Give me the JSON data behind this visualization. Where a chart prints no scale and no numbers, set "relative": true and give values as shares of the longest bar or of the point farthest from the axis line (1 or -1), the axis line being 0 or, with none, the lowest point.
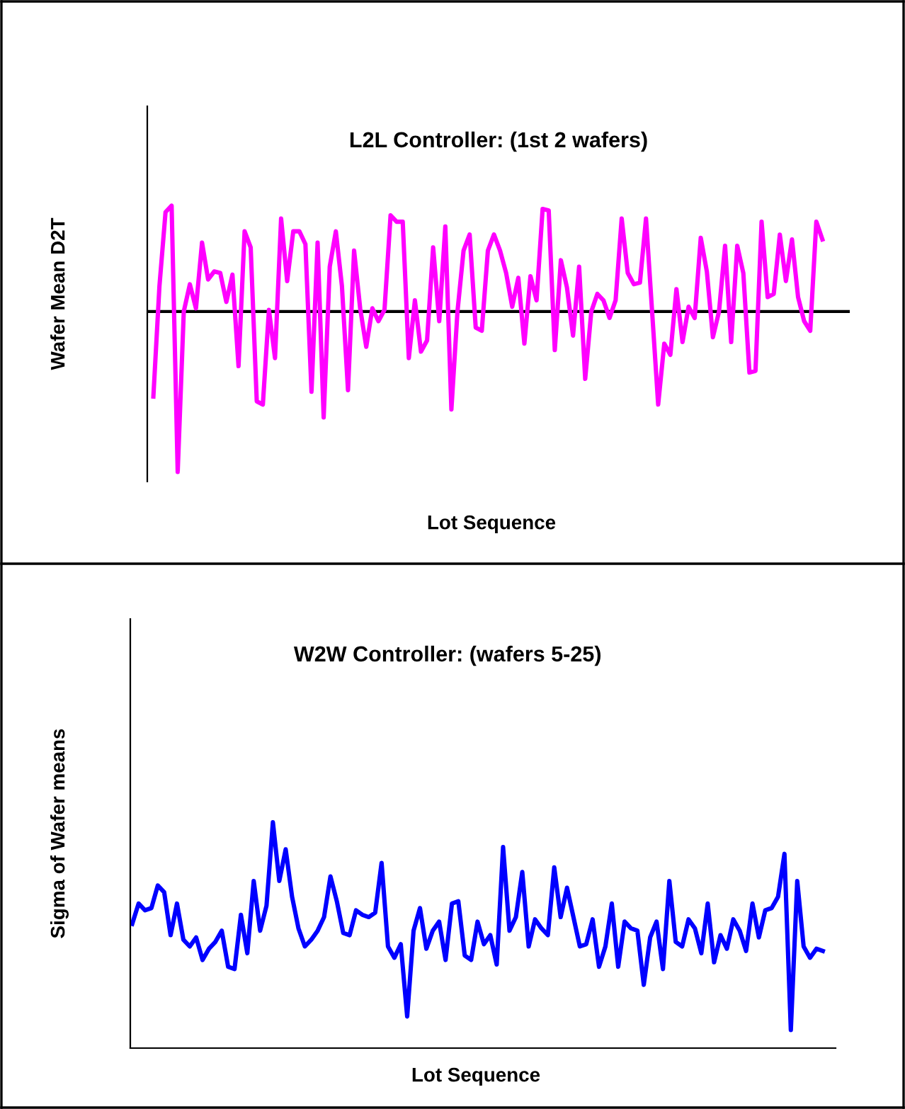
{
  "chart_data": [
    {
      "type": "line",
      "title": "L2L Controller: (1st 2 wafers)",
      "xlabel": "Lot Sequence",
      "ylabel": "Wafer Mean D2T",
      "relative": true,
      "color": "#ff00ff",
      "line_style": "solid",
      "categories": [
        null,
        null,
        null,
        null,
        null,
        null,
        null,
        null,
        null,
        null,
        null,
        null,
        null,
        null,
        null,
        null,
        null,
        null,
        null,
        null,
        null,
        null,
        null,
        null,
        null,
        null,
        null,
        null,
        null,
        null,
        null,
        null,
        null,
        null,
        null,
        null,
        null,
        null,
        null,
        null,
        null,
        null,
        null,
        null,
        null,
        null,
        null,
        null,
        null,
        null,
        null,
        null,
        null,
        null,
        null,
        null,
        null,
        null,
        null,
        null,
        null,
        null,
        null,
        null,
        null,
        null,
        null,
        null,
        null,
        null,
        null,
        null,
        null,
        null,
        null,
        null,
        null,
        null,
        null,
        null,
        null,
        null,
        null,
        null,
        null,
        null,
        null,
        null,
        null,
        null,
        null,
        null,
        null,
        null,
        null,
        null,
        null,
        null,
        null,
        null,
        null,
        null,
        null,
        null,
        null,
        null,
        null,
        null,
        null,
        null,
        null
      ],
      "values": [
        -0.53,
        0.16,
        0.62,
        0.66,
        -1.0,
        0,
        0.17,
        0.02,
        0.43,
        0.2,
        0.25,
        0.24,
        0.06,
        0.23,
        -0.34,
        0.5,
        0.4,
        -0.56,
        -0.58,
        0.01,
        -0.29,
        0.58,
        0.19,
        0.5,
        0.5,
        0.42,
        -0.5,
        0.43,
        -0.66,
        0.28,
        0.5,
        0.16,
        -0.49,
        0.38,
        0.02,
        -0.22,
        0.02,
        -0.06,
        0.01,
        0.6,
        0.56,
        0.56,
        -0.29,
        0.07,
        -0.25,
        -0.18,
        0.4,
        -0.06,
        0.53,
        -0.61,
        0,
        0.38,
        0.48,
        -0.1,
        -0.12,
        0.38,
        0.48,
        0.38,
        0.24,
        0.03,
        0.21,
        -0.2,
        0.22,
        0.07,
        0.64,
        0.63,
        -0.24,
        0.32,
        0.15,
        -0.15,
        0.28,
        -0.42,
        0,
        0.11,
        0.07,
        -0.04,
        0.07,
        0.58,
        0.24,
        0.17,
        0.18,
        0.58,
        0,
        -0.58,
        -0.2,
        -0.27,
        0.14,
        -0.19,
        0.03,
        -0.04,
        0.46,
        0.25,
        -0.16,
        0,
        0.41,
        -0.19,
        0.41,
        0.24,
        -0.38,
        -0.37,
        0.56,
        0.09,
        0.11,
        0.48,
        0.19,
        0.45,
        0.09,
        -0.06,
        -0.12,
        0.56,
        0.45
      ]
    },
    {
      "type": "line",
      "title": "W2W Controller: (wafers 5-25)",
      "xlabel": "Lot Sequence",
      "ylabel": "Sigma of Wafer means",
      "relative": true,
      "color": "#0000ff",
      "line_style": "solid",
      "categories": [
        null,
        null,
        null,
        null,
        null,
        null,
        null,
        null,
        null,
        null,
        null,
        null,
        null,
        null,
        null,
        null,
        null,
        null,
        null,
        null,
        null,
        null,
        null,
        null,
        null,
        null,
        null,
        null,
        null,
        null,
        null,
        null,
        null,
        null,
        null,
        null,
        null,
        null,
        null,
        null,
        null,
        null,
        null,
        null,
        null,
        null,
        null,
        null,
        null,
        null,
        null,
        null,
        null,
        null,
        null,
        null,
        null,
        null,
        null,
        null,
        null,
        null,
        null,
        null,
        null,
        null,
        null,
        null,
        null,
        null,
        null,
        null,
        null,
        null,
        null,
        null,
        null,
        null,
        null,
        null,
        null,
        null,
        null,
        null,
        null,
        null,
        null,
        null,
        null,
        null,
        null,
        null,
        null,
        null,
        null,
        null,
        null,
        null,
        null,
        null,
        null,
        null,
        null,
        null,
        null,
        null,
        null,
        null,
        null
      ],
      "values": [
        0.55,
        0.64,
        0.61,
        0.62,
        0.72,
        0.69,
        0.5,
        0.64,
        0.48,
        0.45,
        0.49,
        0.39,
        0.44,
        0.47,
        0.52,
        0.36,
        0.35,
        0.59,
        0.42,
        0.74,
        0.52,
        0.63,
        1.0,
        0.74,
        0.88,
        0.67,
        0.53,
        0.45,
        0.48,
        0.52,
        0.58,
        0.76,
        0.65,
        0.51,
        0.5,
        0.61,
        0.59,
        0.58,
        0.6,
        0.82,
        0.45,
        0.4,
        0.46,
        0.14,
        0.52,
        0.62,
        0.44,
        0.52,
        0.56,
        0.39,
        0.64,
        0.65,
        0.41,
        0.39,
        0.56,
        0.46,
        0.5,
        0.37,
        0.89,
        0.52,
        0.58,
        0.78,
        0.45,
        0.57,
        0.53,
        0.5,
        0.8,
        0.58,
        0.71,
        0.58,
        0.45,
        0.46,
        0.57,
        0.36,
        0.45,
        0.64,
        0.36,
        0.56,
        0.53,
        0.52,
        0.28,
        0.49,
        0.56,
        0.35,
        0.74,
        0.47,
        0.45,
        0.57,
        0.53,
        0.42,
        0.64,
        0.38,
        0.5,
        0.44,
        0.57,
        0.52,
        0.43,
        0.64,
        0.49,
        0.61,
        0.62,
        0.67,
        0.86,
        0.08,
        0.74,
        0.45,
        0.4,
        0.44,
        0.43
      ]
    }
  ]
}
